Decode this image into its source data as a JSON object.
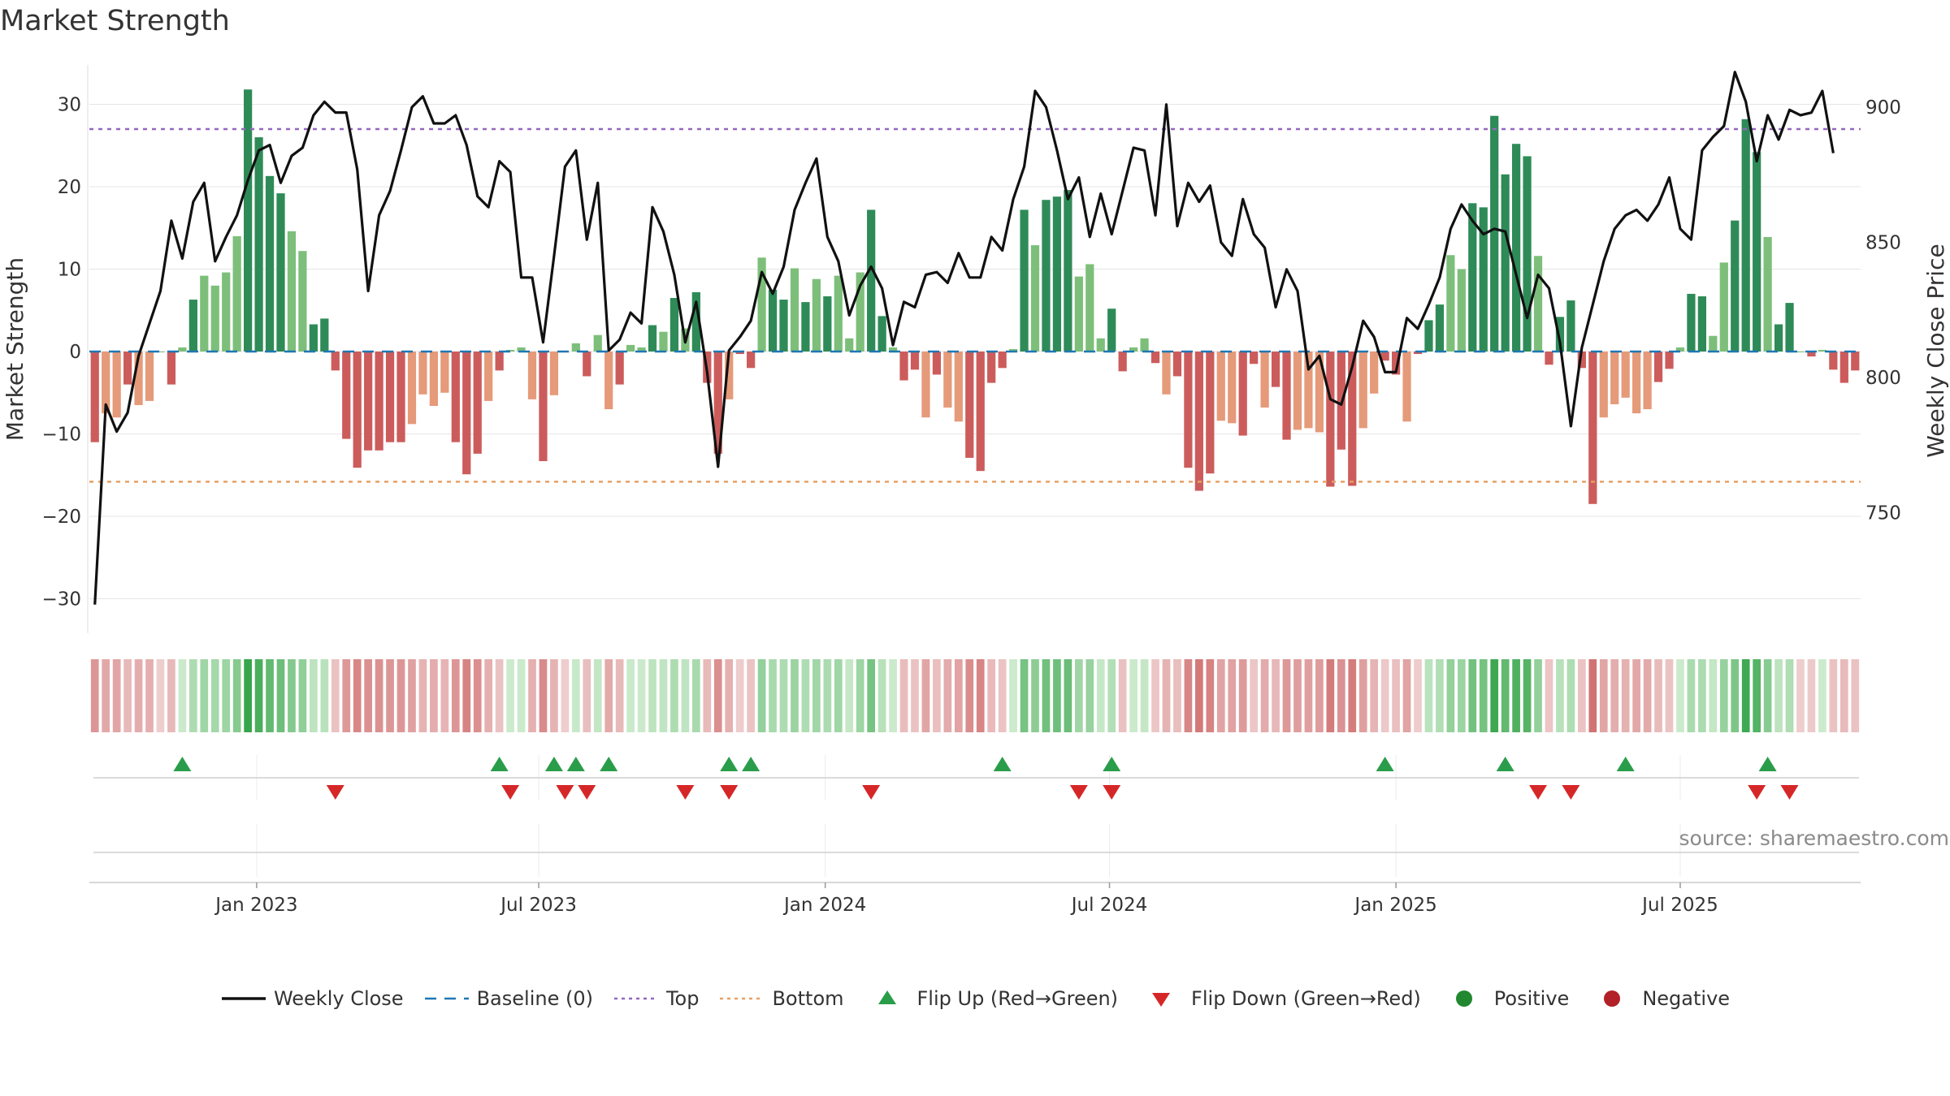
{
  "chart_data": {
    "type": "bar",
    "title": "Market Strength",
    "source": "source: sharemaestro.com",
    "ylabel_left": "Market Strength",
    "ylabel_right": "Weekly Close Price",
    "left_ylim": [
      -34,
      35
    ],
    "right_ylim": [
      716,
      918
    ],
    "left_ticks": [
      30,
      20,
      10,
      0,
      -10,
      -20,
      -30
    ],
    "left_tick_labels": [
      "30",
      "20",
      "10",
      "0",
      "−10",
      "−20",
      "−30"
    ],
    "right_ticks": [
      900,
      850,
      800,
      750
    ],
    "right_tick_labels": [
      "900",
      "850",
      "800",
      "750"
    ],
    "x_tick_labels": [
      "Jan 2023",
      "Jul 2023",
      "Jan 2024",
      "Jul 2024",
      "Jan 2025",
      "Jul 2025"
    ],
    "x_tick_weeks": [
      14.8,
      40.6,
      66.8,
      92.8,
      119.0,
      145.0
    ],
    "top_level": 27,
    "bottom_level": -15.8,
    "baseline": 0,
    "strength": [
      -11,
      -7.5,
      -8,
      -4,
      -6.5,
      -6,
      0,
      -4,
      0.5,
      6.3,
      9.2,
      8,
      9.6,
      14,
      31.8,
      26,
      21.3,
      19.2,
      14.6,
      12.2,
      3.3,
      4,
      -2.3,
      -10.6,
      -14.1,
      -12,
      -12,
      -11,
      -11,
      -8.8,
      -5.2,
      -6.6,
      -5,
      -11,
      -14.9,
      -12.4,
      -6,
      -2.3,
      0.2,
      0.5,
      -5.8,
      -13.3,
      -5.3,
      0,
      1,
      -3,
      2,
      -7,
      -4,
      0.8,
      0.5,
      3.2,
      2.4,
      6.5,
      2.8,
      7.2,
      -3.8,
      -12.4,
      -5.8,
      -0.3,
      -2,
      11.4,
      7.5,
      6.3,
      10.1,
      6,
      8.8,
      6.7,
      9.2,
      1.6,
      9.6,
      17.2,
      4.3,
      0.5,
      -3.5,
      -2.2,
      -8,
      -2.8,
      -6.8,
      -8.5,
      -12.9,
      -14.5,
      -3.8,
      -2,
      0.3,
      17.2,
      12.9,
      18.4,
      18.8,
      19.6,
      9.1,
      10.6,
      1.6,
      5.2,
      -2.4,
      0.5,
      1.6,
      -1.4,
      -5.2,
      -3,
      -14.1,
      -16.9,
      -14.8,
      -8.4,
      -8.7,
      -10.2,
      -1.5,
      -6.8,
      -4.3,
      -10.7,
      -9.5,
      -9.3,
      -9.8,
      -16.4,
      -11.9,
      -16.3,
      -9.3,
      -5.1,
      -1.1,
      -2.8,
      -8.5,
      -0.3,
      3.8,
      5.7,
      11.7,
      10,
      18,
      17.5,
      28.6,
      21.5,
      25.2,
      23.7,
      11.6,
      -1.6,
      4.2,
      6.2,
      -2,
      -18.5,
      -8,
      -6.4,
      -5.6,
      -7.5,
      -7,
      -3.7,
      -2.1,
      0.5,
      7,
      6.7,
      1.9,
      10.8,
      15.9,
      28.2,
      24.2,
      13.9,
      3.3,
      5.9,
      0,
      -0.6,
      0.2,
      -2.2,
      -3.8,
      -2.3
    ],
    "close": [
      716,
      790,
      780,
      787,
      808,
      820,
      832,
      858,
      844,
      865,
      872,
      843,
      852,
      860,
      873,
      884,
      886,
      872,
      882,
      885,
      897,
      902,
      898,
      898,
      877,
      832,
      860,
      869,
      884,
      900,
      904,
      894,
      894,
      897,
      886,
      867,
      863,
      880,
      876,
      837,
      837,
      813,
      845,
      878,
      884,
      851,
      872,
      810,
      814,
      824,
      820,
      863,
      854,
      838,
      813,
      828,
      802,
      767,
      810,
      815,
      821,
      839,
      831,
      841,
      862,
      872,
      881,
      852,
      843,
      823,
      834,
      841,
      833,
      812,
      828,
      826,
      838,
      839,
      835,
      846,
      837,
      837,
      852,
      847,
      866,
      878,
      906,
      900,
      884,
      866,
      874,
      852,
      868,
      853,
      869,
      885,
      884,
      860,
      901,
      856,
      872,
      865,
      871,
      850,
      845,
      866,
      853,
      848,
      826,
      840,
      832,
      803,
      808,
      792,
      790,
      804,
      821,
      815,
      802,
      802,
      822,
      818,
      827,
      837,
      855,
      864,
      858,
      853,
      855,
      854,
      838,
      822,
      838,
      833,
      813,
      782,
      811,
      827,
      843,
      855,
      860,
      862,
      858,
      864,
      874,
      855,
      851,
      884,
      889,
      893,
      913,
      902,
      880,
      897,
      888,
      899,
      897,
      898,
      906,
      883
    ],
    "marker_weeks_up": [
      8,
      37,
      42,
      44,
      47,
      58,
      60,
      83,
      93,
      118,
      129,
      140,
      153
    ],
    "marker_weeks_down": [
      22,
      38,
      43,
      45,
      54,
      58,
      71,
      90,
      93,
      132,
      135,
      152,
      155
    ],
    "legend": [
      {
        "label": "Weekly Close",
        "kind": "line",
        "color": "#111111"
      },
      {
        "label": "Baseline (0)",
        "kind": "dash",
        "color": "#1f77b4"
      },
      {
        "label": "Top",
        "kind": "dot",
        "color": "#9467bd"
      },
      {
        "label": "Bottom",
        "kind": "dot",
        "color": "#e6a063"
      },
      {
        "label": "Flip Up (Red→Green)",
        "kind": "tri-up",
        "color": "#2a9d4a"
      },
      {
        "label": "Flip Down (Green→Red)",
        "kind": "tri-down",
        "color": "#d62728"
      },
      {
        "label": "Positive",
        "kind": "circle",
        "color": "#22882f"
      },
      {
        "label": "Negative",
        "kind": "circle",
        "color": "#b22028"
      }
    ],
    "grid": true
  }
}
